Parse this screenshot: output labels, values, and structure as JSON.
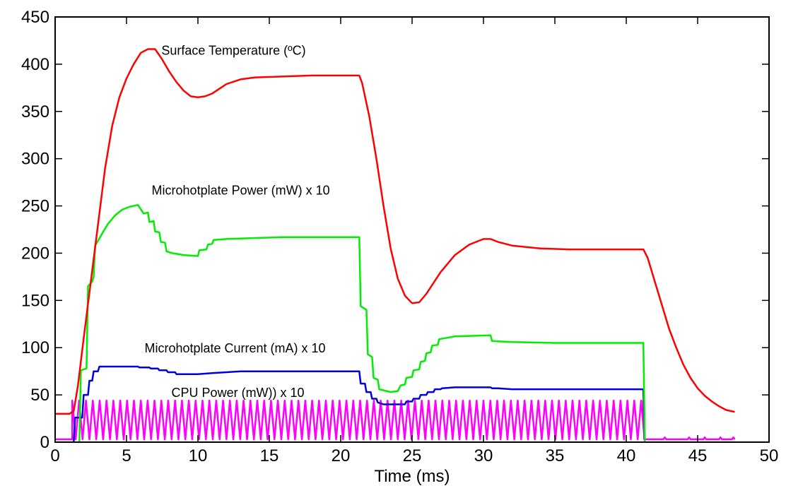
{
  "chart_data": {
    "type": "line",
    "title": "",
    "xlabel": "Time (ms)",
    "ylabel": "",
    "xlim": [
      0,
      50
    ],
    "ylim": [
      0,
      450
    ],
    "xticks": [
      0,
      5,
      10,
      15,
      20,
      25,
      30,
      35,
      40,
      45,
      50
    ],
    "yticks": [
      0,
      50,
      100,
      150,
      200,
      250,
      300,
      350,
      400,
      450
    ],
    "grid": false,
    "legend": "none",
    "annotations": [
      {
        "text": "Surface Temperature (ºC)",
        "x": 12.5,
        "y": 410
      },
      {
        "text": "Microhotplate Power (mW) x 10",
        "x": 13,
        "y": 262
      },
      {
        "text": "Microhotplate Current (mA) x 10",
        "x": 12.6,
        "y": 95
      },
      {
        "text": "CPU Power (mW)) x 10",
        "x": 12.8,
        "y": 48
      }
    ],
    "series": [
      {
        "label": "Surface Temperature (ºC)",
        "color": "#ff0000",
        "points": [
          [
            0,
            30
          ],
          [
            1,
            30
          ],
          [
            1.3,
            33
          ],
          [
            1.6,
            60
          ],
          [
            2,
            110
          ],
          [
            2.5,
            170
          ],
          [
            3,
            230
          ],
          [
            3.5,
            290
          ],
          [
            4,
            335
          ],
          [
            4.5,
            365
          ],
          [
            5,
            385
          ],
          [
            5.5,
            400
          ],
          [
            6,
            412
          ],
          [
            6.5,
            416
          ],
          [
            7,
            416
          ],
          [
            7.5,
            405
          ],
          [
            8,
            392
          ],
          [
            8.5,
            381
          ],
          [
            9,
            372
          ],
          [
            9.5,
            366
          ],
          [
            10,
            365
          ],
          [
            10.5,
            366
          ],
          [
            11,
            369
          ],
          [
            11.5,
            374
          ],
          [
            12,
            379
          ],
          [
            13,
            384
          ],
          [
            14,
            386
          ],
          [
            16,
            387
          ],
          [
            18,
            388
          ],
          [
            20,
            388
          ],
          [
            21.3,
            388
          ],
          [
            21.5,
            380
          ],
          [
            22,
            345
          ],
          [
            22.5,
            300
          ],
          [
            23,
            250
          ],
          [
            23.5,
            205
          ],
          [
            24,
            173
          ],
          [
            24.5,
            155
          ],
          [
            25,
            147
          ],
          [
            25.5,
            148
          ],
          [
            26,
            157
          ],
          [
            27,
            180
          ],
          [
            28,
            198
          ],
          [
            29,
            209
          ],
          [
            30,
            215
          ],
          [
            30.5,
            215
          ],
          [
            31,
            212
          ],
          [
            32,
            208
          ],
          [
            34,
            205
          ],
          [
            36,
            204
          ],
          [
            38,
            204
          ],
          [
            41.2,
            204
          ],
          [
            41.5,
            195
          ],
          [
            42,
            170
          ],
          [
            42.5,
            145
          ],
          [
            43,
            120
          ],
          [
            43.5,
            100
          ],
          [
            44,
            82
          ],
          [
            44.5,
            68
          ],
          [
            45,
            57
          ],
          [
            45.5,
            49
          ],
          [
            46,
            43
          ],
          [
            46.5,
            38
          ],
          [
            47,
            34
          ],
          [
            47.6,
            32
          ]
        ]
      },
      {
        "label": "Microhotplate Power (mW) x 10",
        "color": "#00ee00",
        "points": [
          [
            1.6,
            0
          ],
          [
            1.7,
            0
          ],
          [
            1.8,
            76
          ],
          [
            2.2,
            78
          ],
          [
            2.3,
            165
          ],
          [
            2.6,
            170
          ],
          [
            2.7,
            175
          ],
          [
            2.8,
            208
          ],
          [
            3,
            213
          ],
          [
            3.3,
            221
          ],
          [
            3.7,
            231
          ],
          [
            4.2,
            240
          ],
          [
            4.7,
            246
          ],
          [
            5.2,
            249
          ],
          [
            5.8,
            251
          ],
          [
            6.2,
            242
          ],
          [
            6.5,
            243
          ],
          [
            6.6,
            233
          ],
          [
            6.9,
            234
          ],
          [
            7,
            223
          ],
          [
            7.3,
            222
          ],
          [
            7.4,
            212
          ],
          [
            7.7,
            211
          ],
          [
            7.8,
            202
          ],
          [
            8.2,
            200
          ],
          [
            9,
            198
          ],
          [
            10,
            197
          ],
          [
            10.1,
            203
          ],
          [
            10.6,
            204
          ],
          [
            10.7,
            209
          ],
          [
            11,
            210
          ],
          [
            11.1,
            214
          ],
          [
            12,
            215
          ],
          [
            14,
            216
          ],
          [
            16,
            217
          ],
          [
            18,
            217
          ],
          [
            21.3,
            217
          ],
          [
            21.4,
            144
          ],
          [
            21.8,
            140
          ],
          [
            21.9,
            93
          ],
          [
            22.2,
            90
          ],
          [
            22.3,
            68
          ],
          [
            22.6,
            66
          ],
          [
            22.7,
            56
          ],
          [
            23.5,
            53
          ],
          [
            24,
            54
          ],
          [
            24.2,
            60
          ],
          [
            24.5,
            61
          ],
          [
            24.6,
            68
          ],
          [
            25,
            69
          ],
          [
            25.1,
            76
          ],
          [
            25.5,
            77
          ],
          [
            25.6,
            85
          ],
          [
            25.9,
            86
          ],
          [
            26,
            94
          ],
          [
            26.3,
            95
          ],
          [
            26.4,
            102
          ],
          [
            26.8,
            103
          ],
          [
            26.9,
            109
          ],
          [
            27.3,
            110
          ],
          [
            28,
            112
          ],
          [
            30.5,
            113
          ],
          [
            30.6,
            107
          ],
          [
            32,
            106
          ],
          [
            35,
            105
          ],
          [
            38,
            105
          ],
          [
            41.2,
            105
          ],
          [
            41.3,
            0
          ]
        ]
      },
      {
        "label": "Microhotplate Current (mA) x 10",
        "color": "#0000dd",
        "points": [
          [
            1.3,
            0
          ],
          [
            1.4,
            26
          ],
          [
            1.9,
            26
          ],
          [
            2,
            50
          ],
          [
            2.3,
            50
          ],
          [
            2.4,
            65
          ],
          [
            2.6,
            65
          ],
          [
            2.7,
            75
          ],
          [
            3,
            75
          ],
          [
            3.1,
            80
          ],
          [
            5.8,
            80
          ],
          [
            5.9,
            79
          ],
          [
            6.6,
            79
          ],
          [
            6.7,
            78
          ],
          [
            7.2,
            78
          ],
          [
            7.3,
            76
          ],
          [
            7.8,
            76
          ],
          [
            7.9,
            74
          ],
          [
            8.4,
            74
          ],
          [
            8.5,
            72
          ],
          [
            10,
            72
          ],
          [
            11,
            73
          ],
          [
            12,
            74
          ],
          [
            13,
            75
          ],
          [
            16,
            75
          ],
          [
            21.3,
            75
          ],
          [
            21.4,
            62
          ],
          [
            21.7,
            62
          ],
          [
            21.8,
            53
          ],
          [
            22.1,
            53
          ],
          [
            22.2,
            46
          ],
          [
            22.5,
            46
          ],
          [
            22.6,
            42
          ],
          [
            23,
            40
          ],
          [
            24.5,
            40
          ],
          [
            24.6,
            43
          ],
          [
            25,
            43
          ],
          [
            25.1,
            46
          ],
          [
            25.5,
            46
          ],
          [
            25.6,
            50
          ],
          [
            26,
            50
          ],
          [
            26.1,
            53
          ],
          [
            26.5,
            53
          ],
          [
            26.6,
            56
          ],
          [
            27,
            56
          ],
          [
            27.1,
            57
          ],
          [
            28,
            58
          ],
          [
            30,
            58
          ],
          [
            30.5,
            58
          ],
          [
            30.6,
            57
          ],
          [
            31,
            57
          ],
          [
            32,
            56
          ],
          [
            35,
            56
          ],
          [
            41.2,
            56
          ],
          [
            41.3,
            0
          ]
        ]
      },
      {
        "label": "CPU Power (mW)) x 10",
        "color": "#ff00ff",
        "baseline": 3,
        "peak": 44,
        "pulse_start": 1.2,
        "pulse_end": 41.2,
        "pulse_period": 0.48,
        "tail_pulses": [
          42.7,
          44.4,
          45.5,
          46.6,
          47.5
        ],
        "tail_peak": 5,
        "x_end": 47.6
      }
    ]
  }
}
